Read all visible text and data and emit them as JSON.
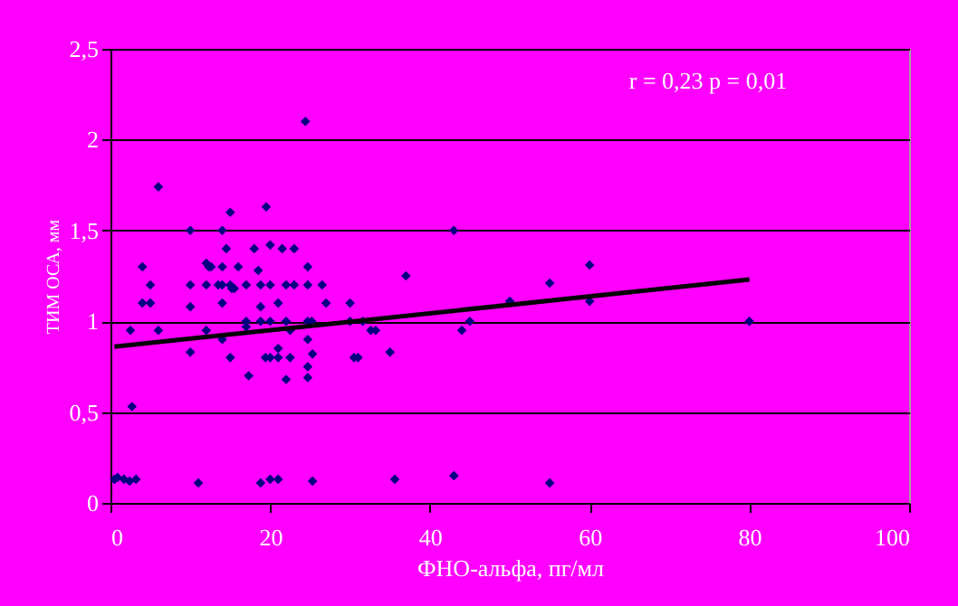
{
  "chart_data": {
    "type": "scatter",
    "xlabel": "ФНО-альфа, пг/мл",
    "ylabel": "ТИМ ОСА, мм",
    "annotations": [
      "r = 0,23   p = 0,01"
    ],
    "xlim": [
      0,
      100
    ],
    "xticks": [
      0,
      20,
      40,
      60,
      80,
      100
    ],
    "ylim": [
      0,
      2.5
    ],
    "yticks": [
      0,
      {
        "value": 0.5,
        "label": "0,5"
      },
      1,
      {
        "value": 1.5,
        "label": "1,5"
      },
      2,
      {
        "value": 2.5,
        "label": "2,5"
      }
    ],
    "grid": "y",
    "series": [
      {
        "color": "#000080",
        "marker": "diamond",
        "x": [
          24.4,
          6,
          19.5,
          15,
          10,
          14,
          43,
          20,
          14.5,
          18,
          21.5,
          23,
          12,
          12.3,
          4,
          12.6,
          14,
          16,
          24.7,
          18.5,
          37,
          5,
          10,
          12,
          13.5,
          14,
          15,
          15.2,
          15.5,
          17,
          18.8,
          20,
          22,
          23,
          24.7,
          26.5,
          4,
          5,
          14,
          21,
          27,
          30,
          10,
          18.8,
          17,
          17,
          18.8,
          20,
          22,
          24.7,
          25.2,
          30,
          31.6,
          32.6,
          33.2,
          2.5,
          6,
          12,
          22.5,
          14,
          24.7,
          45,
          44,
          50,
          55,
          60,
          60,
          80,
          10,
          21,
          25.3,
          35,
          15,
          19.4,
          20,
          21,
          22.5,
          30.5,
          31,
          17.3,
          22,
          24.7,
          24.7,
          2.7,
          0.5,
          0.9,
          1.7,
          2.4,
          3.2,
          11,
          18.8,
          20,
          21,
          25.3,
          35.6,
          43,
          55
        ],
        "values": [
          2.1,
          1.74,
          1.63,
          1.6,
          1.5,
          1.5,
          1.5,
          1.42,
          1.4,
          1.4,
          1.4,
          1.4,
          1.32,
          1.3,
          1.3,
          1.3,
          1.3,
          1.3,
          1.3,
          1.28,
          1.25,
          1.2,
          1.2,
          1.2,
          1.2,
          1.2,
          1.2,
          1.18,
          1.18,
          1.2,
          1.2,
          1.2,
          1.2,
          1.2,
          1.2,
          1.2,
          1.1,
          1.1,
          1.1,
          1.1,
          1.1,
          1.1,
          1.08,
          1.08,
          1.0,
          0.97,
          1.0,
          1.0,
          1.0,
          1.0,
          1.0,
          1.0,
          1.0,
          0.95,
          0.95,
          0.95,
          0.95,
          0.95,
          0.95,
          0.9,
          0.9,
          1.0,
          0.95,
          1.11,
          1.21,
          1.31,
          1.11,
          1.0,
          0.83,
          0.85,
          0.82,
          0.83,
          0.8,
          0.8,
          0.8,
          0.8,
          0.8,
          0.8,
          0.8,
          0.7,
          0.68,
          0.75,
          0.69,
          0.53,
          0.13,
          0.14,
          0.13,
          0.12,
          0.13,
          0.11,
          0.11,
          0.13,
          0.13,
          0.12,
          0.13,
          0.15,
          0.11
        ]
      },
      {
        "type": "line",
        "marker": "none",
        "color": "#000000",
        "x": [
          0.5,
          80
        ],
        "values": [
          0.86,
          1.23
        ]
      }
    ]
  }
}
